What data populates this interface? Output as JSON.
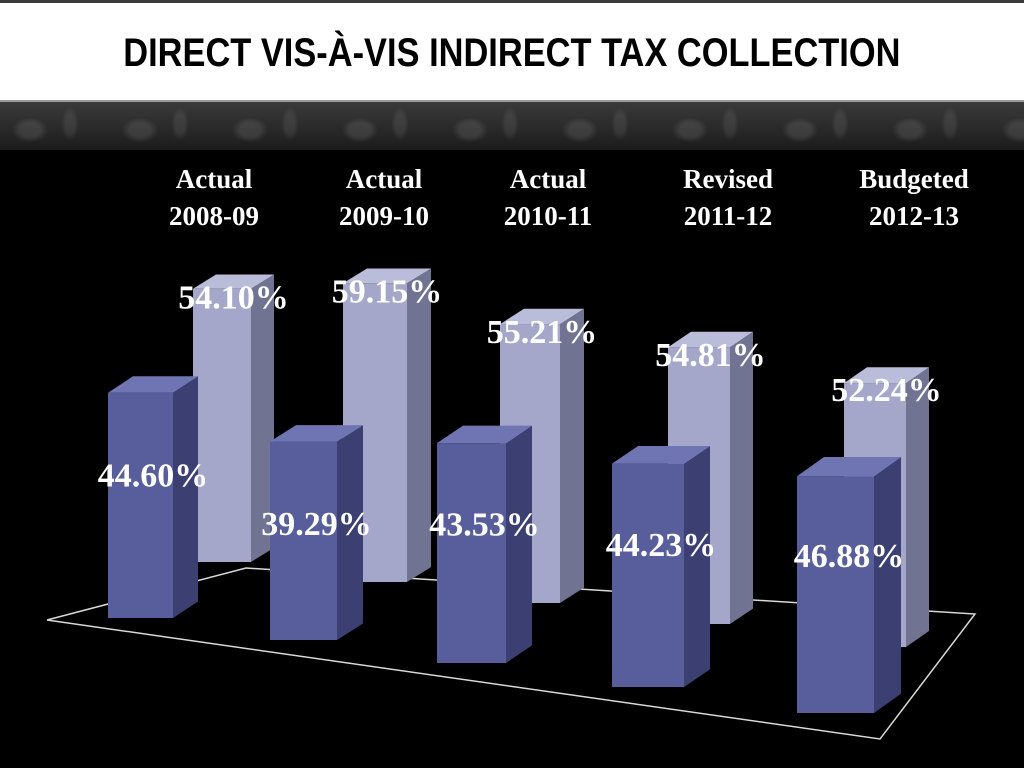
{
  "slide": {
    "title": "DIRECT VIS-À-VIS INDIRECT TAX COLLECTION"
  },
  "colors": {
    "direct_front": "#585e9c",
    "direct_side": "#3b3f72",
    "direct_top": "#6f75b3",
    "indirect_front": "#a4a7ca",
    "indirect_side": "#707392",
    "indirect_top": "#babdd9",
    "label_text": "#ffffff",
    "floor_line": "#d9d9d9"
  },
  "chart_data": {
    "type": "bar",
    "title": "DIRECT VIS-À-VIS INDIRECT TAX COLLECTION",
    "categories": [
      [
        "Actual",
        "2008-09"
      ],
      [
        "Actual",
        "2009-10"
      ],
      [
        "Actual",
        "2010-11"
      ],
      [
        "Revised",
        "2011-12"
      ],
      [
        "Budgeted",
        "2012-13"
      ]
    ],
    "series": [
      {
        "values": [
          44.6,
          39.29,
          43.53,
          44.23,
          46.88
        ],
        "labels": [
          "44.60%",
          "39.29%",
          "43.53%",
          "44.23%",
          "46.88%"
        ]
      },
      {
        "values": [
          54.1,
          59.15,
          55.21,
          54.81,
          52.24
        ],
        "labels": [
          "54.10%",
          "59.15%",
          "55.21%",
          "54.81%",
          "52.24%"
        ]
      }
    ],
    "style": "3d-clustered-columns",
    "ylim": [
      0,
      60
    ],
    "grid": false,
    "legend": "none"
  }
}
